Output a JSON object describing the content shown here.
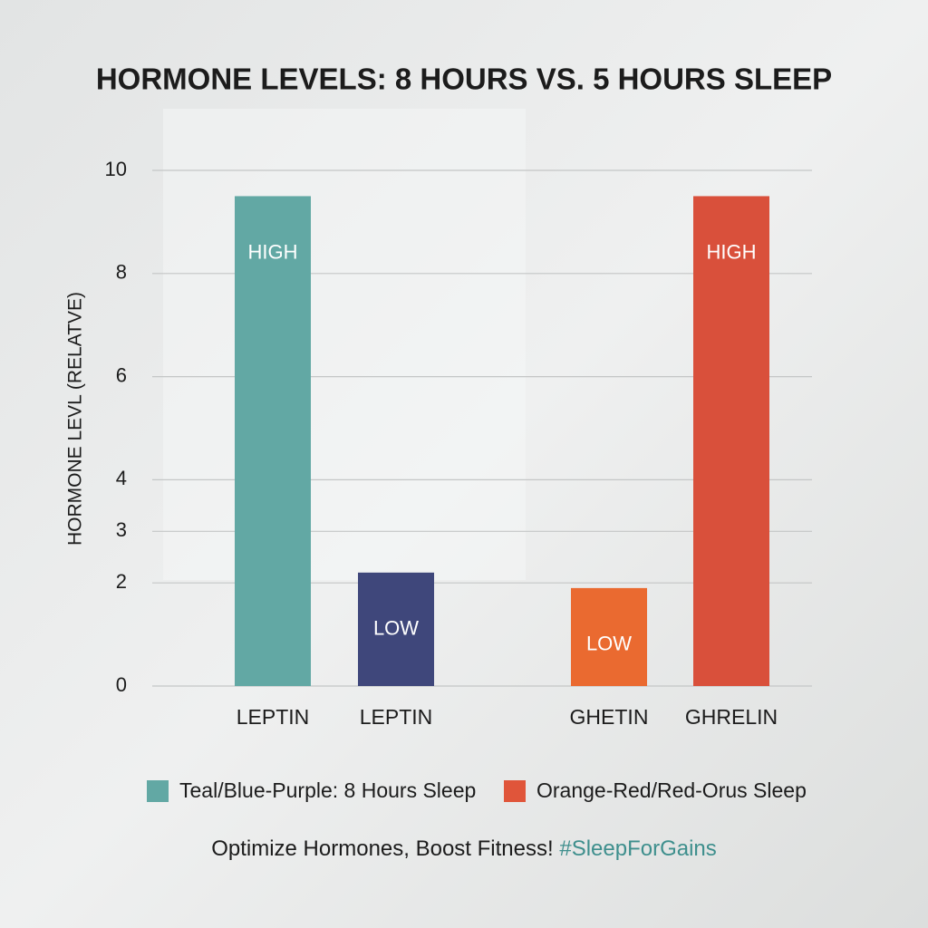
{
  "chart_data": {
    "type": "bar",
    "title": "HORMONE LEVELS: 8 HOURS VS. 5 HOURS SLEEP",
    "y_label": "HORMONE LEVL (RELATVE)",
    "categories": [
      "LEPTIN",
      "LEPTIN",
      "GHETIN",
      "GHRELIN"
    ],
    "values": [
      9.5,
      2.2,
      1.9,
      9.5
    ],
    "bar_texts": [
      "HIGH",
      "LOW",
      "LOW",
      "HIGH"
    ],
    "colors": [
      "#62a8a4",
      "#3f477b",
      "#ea6a30",
      "#d9503b"
    ],
    "ylim": [
      0,
      10
    ],
    "yticks": [
      0,
      2,
      3,
      4,
      6,
      8,
      10
    ],
    "grid": true,
    "legend": [
      {
        "name": "Teal/Blue-Purple: 8 Hours Sleep",
        "color": "#62a8a4"
      },
      {
        "name": "Orange-Red/Red-Orus Sleep",
        "color": "#e0553a"
      }
    ],
    "footer": "Optimize Hormones, Boost Fitness!",
    "hashtag": "#SleepForGains"
  }
}
